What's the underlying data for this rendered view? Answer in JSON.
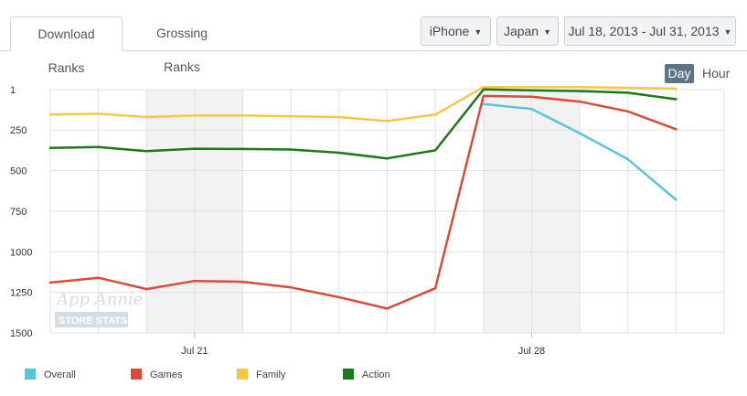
{
  "tabs": [
    {
      "label": "Download Ranks",
      "active": true
    },
    {
      "label": "Grossing Ranks",
      "active": false
    }
  ],
  "filters": {
    "device": "iPhone",
    "country": "Japan",
    "date_range": "Jul 18, 2013 - Jul 31, 2013"
  },
  "granularity": {
    "day": "Day",
    "hour": "Hour",
    "selected": "Day"
  },
  "watermark": {
    "line1": "App Annie",
    "line2": "STORE STATS"
  },
  "chart_data": {
    "type": "line",
    "title": "",
    "xlabel": "",
    "ylabel": "",
    "y_inverted": true,
    "ylim": [
      1,
      1500
    ],
    "yticks": [
      "1",
      "250",
      "500",
      "750",
      "1000",
      "1250",
      "1500"
    ],
    "x": [
      "Jul 18",
      "Jul 19",
      "Jul 20",
      "Jul 21",
      "Jul 22",
      "Jul 23",
      "Jul 24",
      "Jul 25",
      "Jul 26",
      "Jul 27",
      "Jul 28",
      "Jul 29",
      "Jul 30",
      "Jul 31"
    ],
    "x_tick_labels": [
      {
        "label": "Jul 21",
        "x": "Jul 21"
      },
      {
        "label": "Jul 28",
        "x": "Jul 28"
      }
    ],
    "weekend_shading": [
      [
        "Jul 20",
        "Jul 22"
      ],
      [
        "Jul 27",
        "Jul 29"
      ]
    ],
    "grid": true,
    "legend_position": "bottom-left",
    "series": [
      {
        "name": "Overall",
        "color": "#5bc4d6",
        "start": "Jul 27",
        "values": [
          null,
          null,
          null,
          null,
          null,
          null,
          null,
          null,
          null,
          90,
          120,
          270,
          430,
          680
        ]
      },
      {
        "name": "Games",
        "color": "#d84b3b",
        "values": [
          1190,
          1160,
          1230,
          1180,
          1185,
          1220,
          1280,
          1350,
          1225,
          40,
          45,
          75,
          135,
          245
        ]
      },
      {
        "name": "Family",
        "color": "#f5c64a",
        "values": [
          155,
          150,
          170,
          160,
          160,
          165,
          170,
          195,
          155,
          -15,
          -15,
          -15,
          -10,
          -5
        ]
      },
      {
        "name": "Action",
        "color": "#1a7a1a",
        "values": [
          360,
          355,
          380,
          365,
          367,
          370,
          390,
          425,
          375,
          0,
          5,
          10,
          20,
          60
        ]
      }
    ]
  }
}
